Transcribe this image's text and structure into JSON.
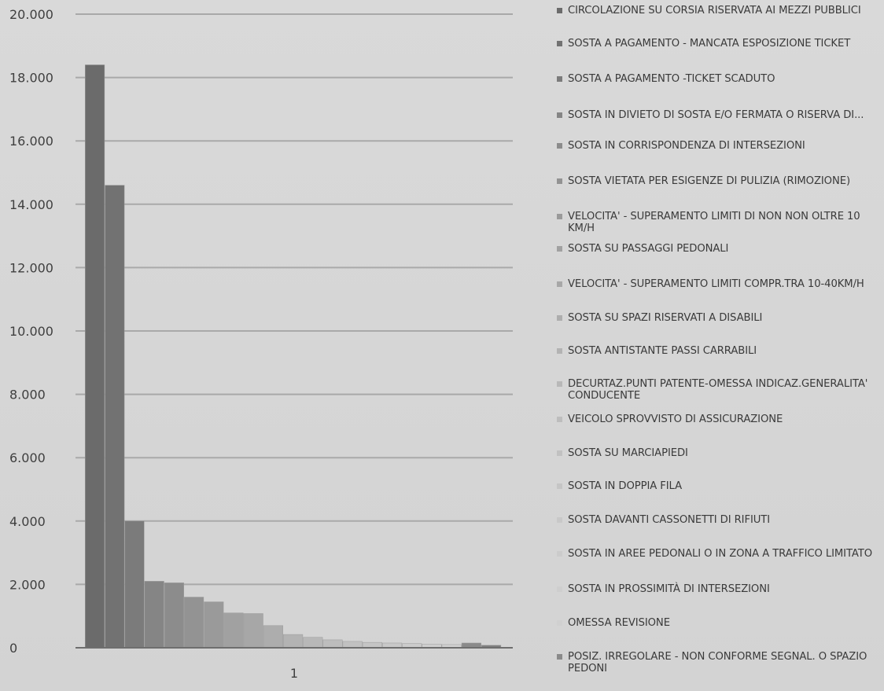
{
  "chart_data": {
    "type": "bar",
    "categories": [
      "1"
    ],
    "ylim": [
      0,
      20000
    ],
    "yticks": [
      0,
      2000,
      4000,
      6000,
      8000,
      10000,
      12000,
      14000,
      16000,
      18000,
      20000
    ],
    "ytick_labels": [
      "0",
      "2.000",
      "4.000",
      "6.000",
      "8.000",
      "10.000",
      "12.000",
      "14.000",
      "16.000",
      "18.000",
      "20.000"
    ],
    "grid": true,
    "legend_position": "right",
    "series": [
      {
        "name": "CIRCOLAZIONE SU CORSIA RISERVATA AI MEZZI PUBBLICI",
        "values": [
          18400
        ],
        "color": "#6b6b6b"
      },
      {
        "name": "SOSTA  A PAGAMENTO - MANCATA ESPOSIZIONE TICKET",
        "values": [
          14600
        ],
        "color": "#727272"
      },
      {
        "name": "SOSTA  A PAGAMENTO -TICKET SCADUTO",
        "values": [
          4000
        ],
        "color": "#7b7b7b"
      },
      {
        "name": "SOSTA IN DIVIETO DI SOSTA E/O FERMATA  O RISERVA DI...",
        "values": [
          2100
        ],
        "color": "#858585"
      },
      {
        "name": "SOSTA IN CORRISPONDENZA DI INTERSEZIONI",
        "values": [
          2050
        ],
        "color": "#8c8c8c"
      },
      {
        "name": "SOSTA VIETATA PER ESIGENZE DI PULIZIA (RIMOZIONE)",
        "values": [
          1600
        ],
        "color": "#939393"
      },
      {
        "name": "VELOCITA' - SUPERAMENTO LIMITI DI NON NON OLTRE 10 KM/H",
        "values": [
          1450
        ],
        "color": "#9a9a9a"
      },
      {
        "name": "SOSTA SU PASSAGGI PEDONALI",
        "values": [
          1100
        ],
        "color": "#a1a1a1"
      },
      {
        "name": "VELOCITA' - SUPERAMENTO LIMITI COMPR.TRA 10-40KM/H",
        "values": [
          1080
        ],
        "color": "#a7a7a7"
      },
      {
        "name": "SOSTA SU SPAZI RISERVATI A DISABILI",
        "values": [
          700
        ],
        "color": "#adadad"
      },
      {
        "name": "SOSTA ANTISTANTE PASSI CARRABILI",
        "values": [
          420
        ],
        "color": "#b3b3b3"
      },
      {
        "name": "DECURTAZ.PUNTI PATENTE-OMESSA INDICAZ.GENERALITA' CONDUCENTE",
        "values": [
          330
        ],
        "color": "#b8b8b8"
      },
      {
        "name": "VEICOLO SPROVVISTO DI ASSICURAZIONE",
        "values": [
          250
        ],
        "color": "#bdbdbd"
      },
      {
        "name": "SOSTA SU MARCIAPIEDI",
        "values": [
          200
        ],
        "color": "#c1c1c1"
      },
      {
        "name": "SOSTA IN DOPPIA FILA",
        "values": [
          170
        ],
        "color": "#c5c5c5"
      },
      {
        "name": "SOSTA DAVANTI CASSONETTI DI RIFIUTI",
        "values": [
          150
        ],
        "color": "#c8c8c8"
      },
      {
        "name": "SOSTA IN AREE PEDONALI O IN ZONA  A TRAFFICO LIMITATO",
        "values": [
          130
        ],
        "color": "#cbcbcb"
      },
      {
        "name": "SOSTA IN PROSSIMITÀ DI INTERSEZIONI",
        "values": [
          110
        ],
        "color": "#cecece"
      },
      {
        "name": "OMESSA REVISIONE",
        "values": [
          100
        ],
        "color": "#d0d0d0"
      },
      {
        "name": "POSIZ. IRREGOLARE - NON CONFORME SEGNAL. O SPAZIO PEDONI",
        "values": [
          150
        ],
        "color": "#8a8a8a"
      },
      {
        "name": "",
        "values": [
          80
        ],
        "color": "#7f7f7f"
      }
    ]
  }
}
